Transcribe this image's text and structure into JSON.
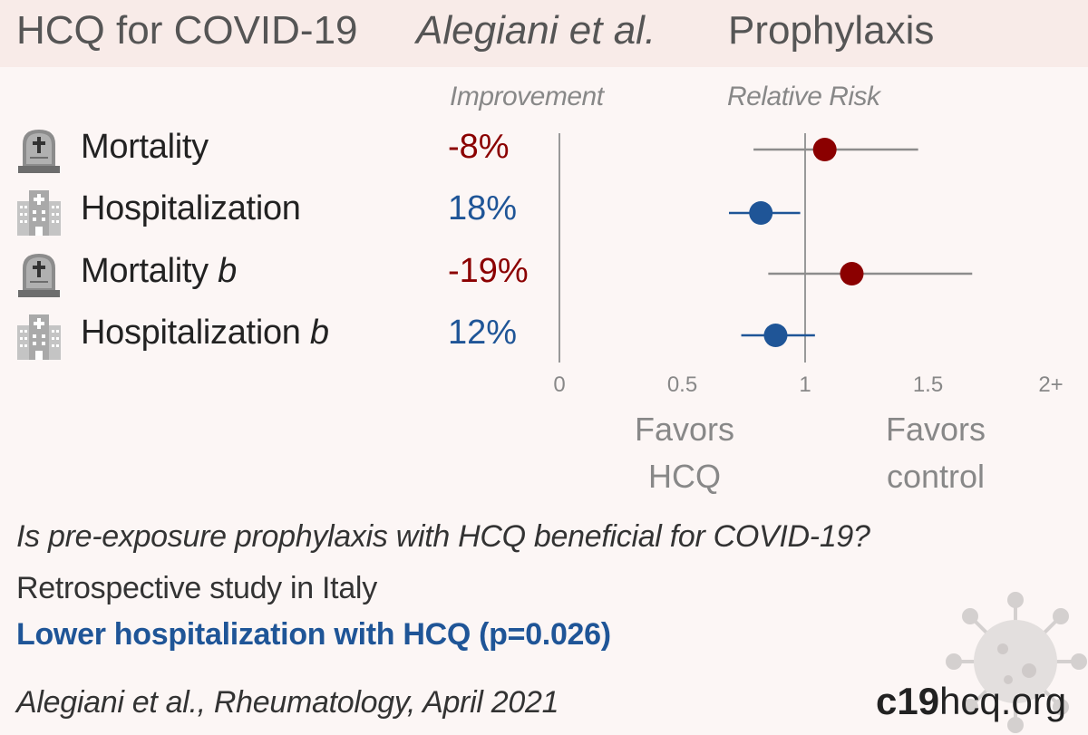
{
  "title": {
    "main": "HCQ for COVID-19",
    "authors": "Alegiani et al.",
    "type": "Prophylaxis"
  },
  "columns": {
    "improvement": "Improvement",
    "relative_risk": "Relative Risk"
  },
  "chart_data": {
    "type": "scatter",
    "subtype": "forest-plot",
    "x_axis": {
      "ticks": [
        "0",
        "0.5",
        "1",
        "1.5",
        "2+"
      ],
      "range": [
        0,
        2
      ],
      "reference_line": 1
    },
    "rows": [
      {
        "label": "Mortality",
        "suffix": "",
        "icon": "tombstone-icon",
        "improvement": "-8%",
        "rr": 1.08,
        "ci": [
          0.79,
          1.46
        ],
        "color": "#8b0000"
      },
      {
        "label": "Hospitalization",
        "suffix": "",
        "icon": "hospital-icon",
        "improvement": "18%",
        "rr": 0.82,
        "ci": [
          0.69,
          0.98
        ],
        "color": "#1f5597"
      },
      {
        "label": "Mortality",
        "suffix": "b",
        "icon": "tombstone-icon",
        "improvement": "-19%",
        "rr": 1.19,
        "ci": [
          0.85,
          1.68
        ],
        "color": "#8b0000"
      },
      {
        "label": "Hospitalization",
        "suffix": "b",
        "icon": "hospital-icon",
        "improvement": "12%",
        "rr": 0.88,
        "ci": [
          0.74,
          1.04
        ],
        "color": "#1f5597"
      }
    ],
    "favors": {
      "left": [
        "Favors",
        "HCQ"
      ],
      "right": [
        "Favors",
        "control"
      ]
    }
  },
  "footer": {
    "question": "Is pre-exposure prophylaxis with HCQ beneficial for COVID-19?",
    "design": "Retrospective study in Italy",
    "conclusion": "Lower hospitalization with HCQ (p=0.026)",
    "citation": "Alegiani et al., Rheumatology, April 2021",
    "brand_bold": "c19",
    "brand_rest": "hcq.org"
  },
  "colors": {
    "harm": "#8b0000",
    "benefit": "#1f5597",
    "header_bg": "#f8ebe8",
    "page_bg": "#fcf6f5"
  }
}
